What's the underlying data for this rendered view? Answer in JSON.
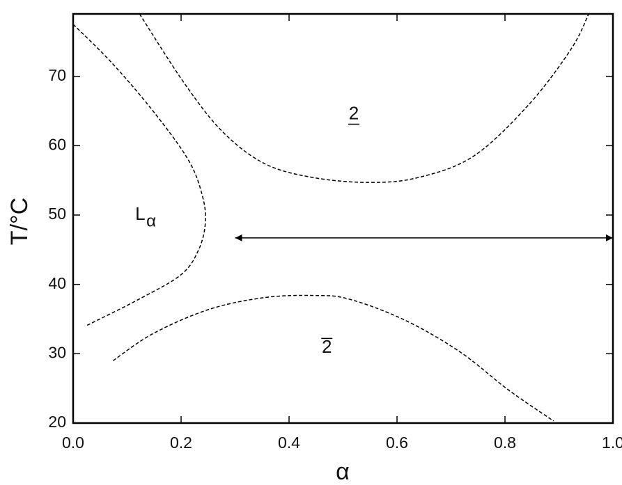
{
  "chart_data": {
    "type": "line",
    "x_label": "α",
    "y_label": "T/°C",
    "xlim": [
      0,
      1
    ],
    "ylim": [
      20,
      79
    ],
    "xticks": [
      {
        "value": 0,
        "label": "0.0"
      },
      0.2,
      0.4,
      0.6,
      0.8,
      {
        "value": 1,
        "label": "1.0"
      }
    ],
    "yticks": [
      20,
      30,
      40,
      50,
      60,
      70
    ],
    "color": "#000000",
    "dashed": true,
    "series": [
      {
        "x": [
          0.123,
          0.206,
          0.277,
          0.355,
          0.445,
          0.548,
          0.639,
          0.742,
          0.845,
          0.923,
          0.955
        ],
        "values": [
          79,
          69.0,
          62.0,
          57.4,
          55.4,
          54.7,
          55.4,
          58.5,
          66.0,
          74.0,
          79
        ]
      },
      {
        "x": [
          0,
          0.071,
          0.148,
          0.213,
          0.239,
          0.245,
          0.232,
          0.2,
          0.123,
          0.026
        ],
        "values": [
          77.5,
          72.0,
          65.0,
          58.0,
          52.9,
          48.9,
          44.9,
          41.4,
          37.9,
          34.1
        ]
      },
      {
        "x": [
          0.074,
          0.148,
          0.252,
          0.355,
          0.445,
          0.51,
          0.613,
          0.716,
          0.806,
          0.89
        ],
        "values": [
          29.0,
          32.9,
          36.4,
          38.1,
          38.4,
          37.9,
          34.9,
          30.3,
          24.8,
          20.3
        ]
      }
    ],
    "arrow": {
      "x": [
        0.3,
        1.0
      ],
      "y": 46.7
    },
    "annotations": [
      {
        "text": "2",
        "x": 0.52,
        "y": 64.5,
        "decoration": "underline"
      },
      {
        "text": "2",
        "x": 0.47,
        "y": 30.8,
        "decoration": "overline"
      },
      {
        "text": "L",
        "subscript": "α",
        "x": 0.115,
        "y": 50
      }
    ]
  }
}
